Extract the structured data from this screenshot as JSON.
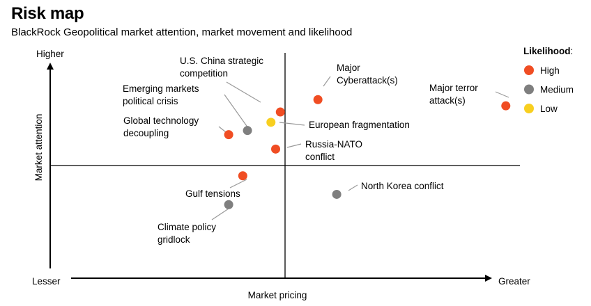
{
  "title": "Risk map",
  "subtitle": "BlackRock Geopolitical market attention, market movement and likelihood",
  "chart_data": {
    "type": "scatter",
    "xlabel": "Market pricing",
    "ylabel": "Market attention",
    "x_low_label": "Lesser",
    "x_high_label": "Greater",
    "y_high_label": "Higher",
    "xlim": [
      0,
      100
    ],
    "ylim": [
      0,
      100
    ],
    "legend": {
      "title": "Likelihood",
      "title_suffix": ":",
      "placement": "top-right",
      "entries": [
        {
          "key": "High",
          "label": "High",
          "color": "#f04d23"
        },
        {
          "key": "Medium",
          "label": "Medium",
          "color": "#7f7f7f"
        },
        {
          "key": "Low",
          "label": "Low",
          "color": "#f8cf1f"
        }
      ]
    },
    "points": [
      {
        "name": "U.S. China strategic competition",
        "lines": [
          "U.S. China strategic",
          "competition"
        ],
        "x": 49,
        "y": 76,
        "likelihood": "High"
      },
      {
        "name": "Major Cyberattack(s)",
        "lines": [
          "Major",
          "Cyberattack(s)"
        ],
        "x": 57,
        "y": 82,
        "likelihood": "High"
      },
      {
        "name": "Major terror attack(s)",
        "lines": [
          "Major terror",
          "attack(s)"
        ],
        "x": 97,
        "y": 79,
        "likelihood": "High"
      },
      {
        "name": "Emerging markets political crisis",
        "lines": [
          "Emerging markets",
          "political crisis"
        ],
        "x": 42,
        "y": 67,
        "likelihood": "Medium"
      },
      {
        "name": "European fragmentation",
        "lines": [
          "European fragmentation"
        ],
        "x": 47,
        "y": 71,
        "likelihood": "Low"
      },
      {
        "name": "Global technology decoupling",
        "lines": [
          "Global technology",
          "decoupling"
        ],
        "x": 38,
        "y": 65,
        "likelihood": "High"
      },
      {
        "name": "Russia-NATO conflict",
        "lines": [
          "Russia-NATO",
          "conflict"
        ],
        "x": 48,
        "y": 58,
        "likelihood": "High"
      },
      {
        "name": "Gulf tensions",
        "lines": [
          "Gulf tensions"
        ],
        "x": 41,
        "y": 45,
        "likelihood": "High"
      },
      {
        "name": "North Korea conflict",
        "lines": [
          "North Korea conflict"
        ],
        "x": 61,
        "y": 36,
        "likelihood": "Medium"
      },
      {
        "name": "Climate policy gridlock",
        "lines": [
          "Climate policy",
          "gridlock"
        ],
        "x": 38,
        "y": 31,
        "likelihood": "Medium"
      }
    ]
  }
}
